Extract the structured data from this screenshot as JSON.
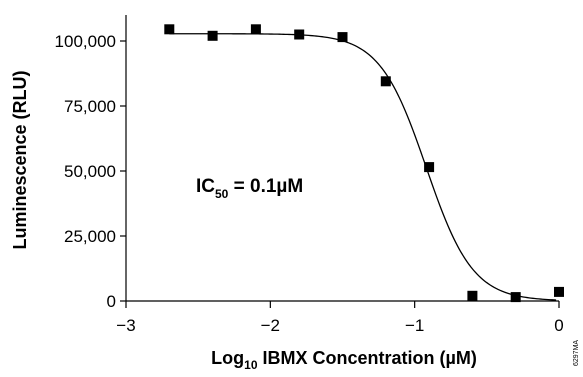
{
  "chart_data": {
    "type": "scatter",
    "xlabel": "Log",
    "xlabel_sub": "10",
    "xlabel_rest": " IBMX Concentration (µM)",
    "ylabel": "Luminescence (RLU)",
    "xlim": [
      -3,
      0
    ],
    "ylim": [
      0,
      110000
    ],
    "x_ticks": [
      -3,
      -2,
      -1,
      0
    ],
    "x_tick_labels": [
      "−3",
      "−2",
      "−1",
      "0"
    ],
    "y_ticks": [
      0,
      25000,
      50000,
      75000,
      100000
    ],
    "y_tick_labels": [
      "0",
      "25,000",
      "50,000",
      "75,000",
      "100,000"
    ],
    "grid": false,
    "series": [
      {
        "marker": "square",
        "color": "#000000",
        "x": [
          -2.7,
          -2.4,
          -2.1,
          -1.8,
          -1.5,
          -1.2,
          -0.9,
          -0.6,
          -0.3,
          0.0
        ],
        "y": [
          104500,
          102000,
          104500,
          102500,
          101500,
          84500,
          51500,
          2000,
          1500,
          3500
        ]
      }
    ],
    "fit_curve": {
      "type": "four-parameter-logistic",
      "top": 102800,
      "bottom": 0,
      "log_ic50": -0.92,
      "hill_slope": -2.7,
      "color": "#000000"
    },
    "annotation": {
      "prefix": "IC",
      "subscript": "50",
      "suffix": " = 0.1µM"
    },
    "figure_id": "6297MA"
  }
}
